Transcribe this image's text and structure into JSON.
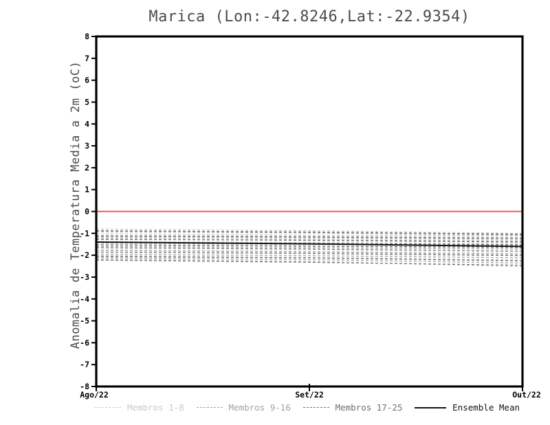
{
  "chart_data": {
    "type": "line",
    "title": "Marica (Lon:-42.8246,Lat:-22.9354)",
    "xlabel": "",
    "ylabel": "Anomalia de Temperatura Media a 2m (oC)",
    "x_categories": [
      "Ago/22",
      "Set/22",
      "Out/22"
    ],
    "ylim": [
      -8,
      8
    ],
    "y_ticks": [
      8,
      7,
      6,
      5,
      4,
      3,
      2,
      1,
      0,
      -1,
      -2,
      -3,
      -4,
      -5,
      -6,
      -7,
      -8
    ],
    "grid": false,
    "frame_color": "#000000",
    "tick_label_color": "#000000",
    "zero_line": {
      "value": 0,
      "color": "#f25151"
    },
    "groups": [
      {
        "name": "Membros 1-8",
        "color": "#c9c9c9",
        "style": "dashed",
        "members": [
          [
            -0.8,
            -0.88,
            -1.0
          ],
          [
            -1.02,
            -1.08,
            -1.12
          ],
          [
            -1.2,
            -1.24,
            -1.3
          ],
          [
            -1.38,
            -1.42,
            -1.47
          ],
          [
            -1.55,
            -1.6,
            -1.66
          ],
          [
            -1.76,
            -1.82,
            -1.92
          ],
          [
            -2.02,
            -2.1,
            -2.22
          ],
          [
            -2.18,
            -2.28,
            -2.52
          ]
        ]
      },
      {
        "name": "Membros 9-16",
        "color": "#a2a2a2",
        "style": "dashed",
        "members": [
          [
            -0.92,
            -0.98,
            -1.08
          ],
          [
            -1.1,
            -1.14,
            -1.2
          ],
          [
            -1.28,
            -1.3,
            -1.36
          ],
          [
            -1.44,
            -1.5,
            -1.56
          ],
          [
            -1.6,
            -1.66,
            -1.72
          ],
          [
            -1.78,
            -1.86,
            -1.96
          ],
          [
            -1.96,
            -2.02,
            -2.12
          ],
          [
            -2.12,
            -2.2,
            -2.36
          ]
        ]
      },
      {
        "name": "Membros 17-25",
        "color": "#6f6f6f",
        "style": "dashed",
        "members": [
          [
            -0.88,
            -0.94,
            -1.04
          ],
          [
            -1.14,
            -1.18,
            -1.24
          ],
          [
            -1.26,
            -1.32,
            -1.4
          ],
          [
            -1.4,
            -1.46,
            -1.52
          ],
          [
            -1.52,
            -1.58,
            -1.64
          ],
          [
            -1.66,
            -1.72,
            -1.82
          ],
          [
            -1.86,
            -1.92,
            -2.02
          ],
          [
            -2.06,
            -2.12,
            -2.26
          ],
          [
            -2.22,
            -2.32,
            -2.46
          ]
        ]
      }
    ],
    "mean_series": {
      "name": "Ensemble Mean",
      "color": "#141414",
      "style": "solid",
      "values": [
        -1.4,
        -1.48,
        -1.6
      ]
    },
    "legend_position": "bottom"
  },
  "legend": {
    "items": [
      {
        "label": "Membros 1-8",
        "color": "#c9c9c9",
        "style": "dashed"
      },
      {
        "label": "Membros 9-16",
        "color": "#a2a2a2",
        "style": "dashed"
      },
      {
        "label": "Membros 17-25",
        "color": "#6f6f6f",
        "style": "dashed"
      },
      {
        "label": "Ensemble Mean",
        "color": "#141414",
        "style": "solid"
      }
    ]
  }
}
